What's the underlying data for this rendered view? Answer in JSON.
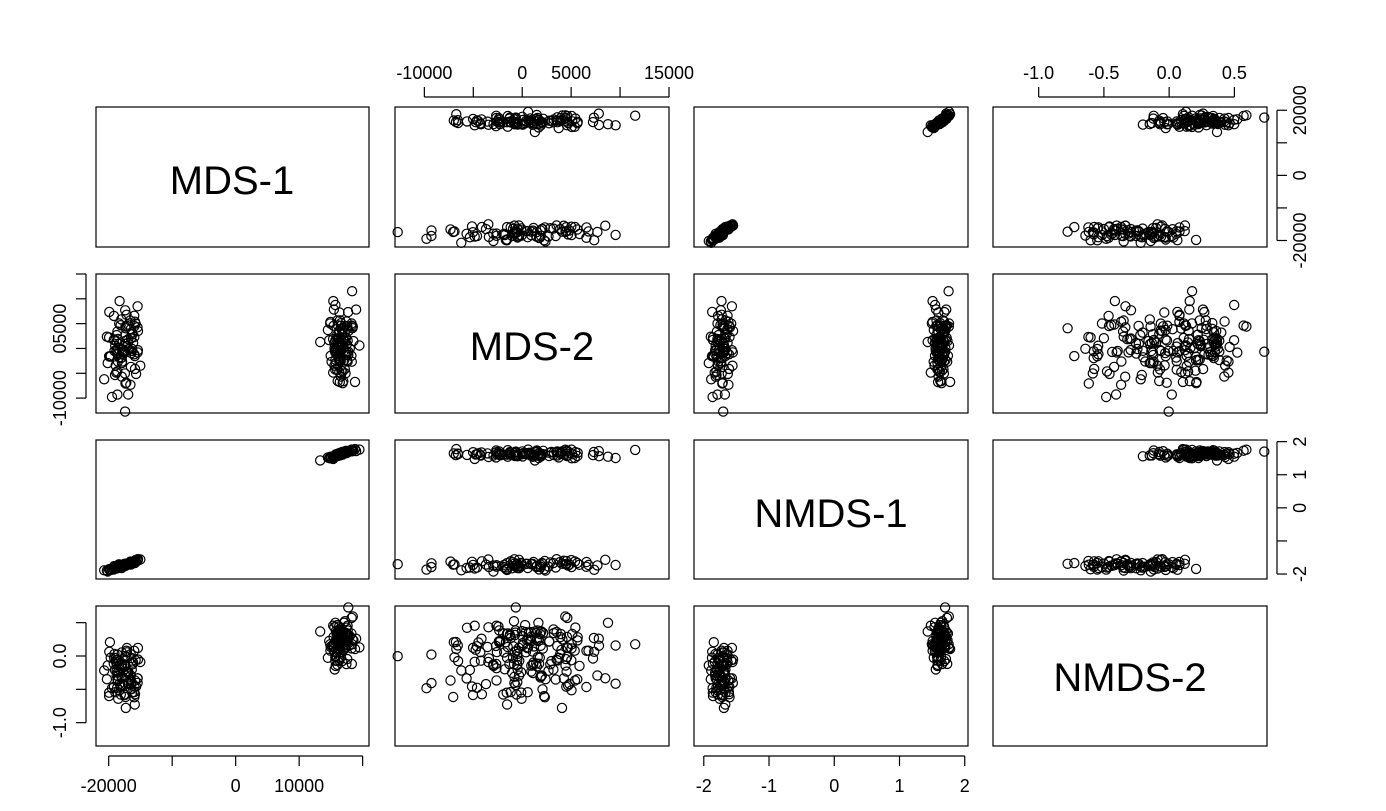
{
  "chart_data": {
    "type": "scatter",
    "subtype": "pairs-matrix",
    "variables": [
      "MDS-1",
      "MDS-2",
      "NMDS-1",
      "NMDS-2"
    ],
    "ranges": {
      "MDS-1": [
        -22000,
        21000
      ],
      "MDS-2": [
        -13000,
        15000
      ],
      "NMDS-1": [
        -2.15,
        2.05
      ],
      "NMDS-2": [
        -1.35,
        0.75
      ]
    },
    "tick_labels": {
      "MDS-1": [
        {
          "v": -20000,
          "label": "-20000"
        },
        {
          "v": -10000,
          "label": ""
        },
        {
          "v": 0,
          "label": "0"
        },
        {
          "v": 10000,
          "label": "10000"
        },
        {
          "v": 20000,
          "label": ""
        }
      ],
      "MDS-1-right": [
        {
          "v": -20000,
          "label": "-20000"
        },
        {
          "v": -10000,
          "label": ""
        },
        {
          "v": 0,
          "label": "0"
        },
        {
          "v": 10000,
          "label": ""
        },
        {
          "v": 20000,
          "label": "20000"
        }
      ],
      "MDS-2": [
        {
          "v": -10000,
          "label": "-10000"
        },
        {
          "v": -5000,
          "label": ""
        },
        {
          "v": 0,
          "label": "0"
        },
        {
          "v": 5000,
          "label": "5000"
        },
        {
          "v": 10000,
          "label": ""
        },
        {
          "v": 15000,
          "label": "15000"
        }
      ],
      "MDS-2-left": [
        {
          "v": -10000,
          "label": "-10000"
        },
        {
          "v": -5000,
          "label": ""
        },
        {
          "v": 0,
          "label": "0"
        },
        {
          "v": 5000,
          "label": "5000"
        },
        {
          "v": 10000,
          "label": ""
        },
        {
          "v": 15000,
          "label": ""
        }
      ],
      "NMDS-1": [
        {
          "v": -2,
          "label": "-2"
        },
        {
          "v": -1,
          "label": "-1"
        },
        {
          "v": 0,
          "label": "0"
        },
        {
          "v": 1,
          "label": "1"
        },
        {
          "v": 2,
          "label": "2"
        }
      ],
      "NMDS-1-right": [
        {
          "v": -2,
          "label": "-2"
        },
        {
          "v": -1,
          "label": ""
        },
        {
          "v": 0,
          "label": "0"
        },
        {
          "v": 1,
          "label": "1"
        },
        {
          "v": 2,
          "label": "2"
        }
      ],
      "NMDS-2": [
        {
          "v": -1.0,
          "label": "-1.0"
        },
        {
          "v": -0.5,
          "label": "-0.5"
        },
        {
          "v": 0.0,
          "label": "0.0"
        },
        {
          "v": 0.5,
          "label": "0.5"
        }
      ],
      "NMDS-2-left": [
        {
          "v": -1.0,
          "label": "-1.0"
        },
        {
          "v": -0.5,
          "label": ""
        },
        {
          "v": 0.0,
          "label": "0.0"
        },
        {
          "v": 0.5,
          "label": ""
        }
      ]
    },
    "clusters": [
      {
        "name": "",
        "n": 90,
        "mds1_mean": -17500,
        "mds1_sd": 1400,
        "mds2_mean": 0,
        "mds2_sd": 4500,
        "nmds1_mean": -1.72,
        "nmds1_sd": 0.09,
        "nmds2_mean": -0.28,
        "nmds2_sd": 0.24
      },
      {
        "name": "",
        "n": 110,
        "mds1_mean": 16500,
        "mds1_sd": 1100,
        "mds2_mean": 1000,
        "mds2_sd": 3800,
        "nmds1_mean": 1.62,
        "nmds1_sd": 0.07,
        "nmds2_mean": 0.22,
        "nmds2_sd": 0.16
      }
    ],
    "grid": false,
    "legend": "none",
    "title": "",
    "xlabel": "",
    "ylabel": ""
  },
  "colors": {
    "points": "#000000",
    "frame": "#000000",
    "background": "#ffffff"
  }
}
